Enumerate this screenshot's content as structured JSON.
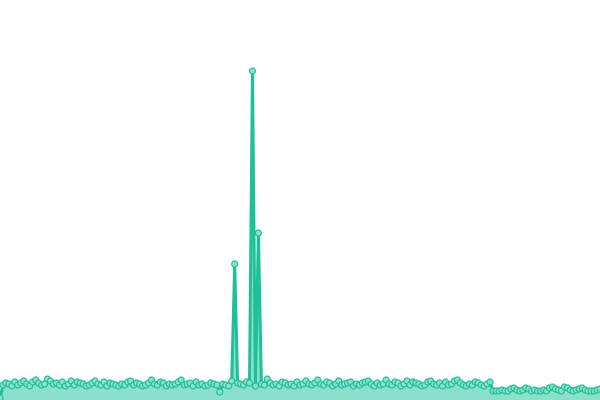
{
  "chart_data": {
    "type": "area",
    "title": "",
    "xlabel": "",
    "ylabel": "",
    "grid": false,
    "legend": "none",
    "ylim": [
      0,
      340
    ],
    "colors": {
      "line": "#1fbf98",
      "fill": "#8ae0cb",
      "marker_fill": "#8ae0cb",
      "marker_stroke": "#1fbf98"
    },
    "values": [
      2,
      15,
      17,
      16,
      14,
      18,
      15,
      17,
      19,
      16,
      14,
      18,
      20,
      17,
      15,
      16,
      21,
      19,
      16,
      17,
      15,
      18,
      14,
      16,
      19,
      15,
      18,
      17,
      16,
      14,
      15,
      17,
      19,
      16,
      15,
      18,
      14,
      17,
      16,
      15,
      14,
      16,
      15,
      18,
      19,
      15,
      17,
      16,
      14,
      15,
      17,
      20,
      16,
      15,
      18,
      17,
      14,
      16,
      15,
      16,
      18,
      20,
      15,
      16,
      17,
      14,
      18,
      15,
      16,
      14,
      15,
      17,
      16,
      15,
      8,
      16,
      15,
      14,
      19,
      136,
      17,
      16,
      15,
      18,
      17,
      329,
      14,
      167,
      16,
      15,
      21,
      17,
      15,
      16,
      14,
      18,
      17,
      15,
      16,
      14,
      18,
      15,
      16,
      19,
      16,
      15,
      17,
      20,
      16,
      15,
      18,
      17,
      14,
      16,
      19,
      15,
      16,
      17,
      18,
      14,
      16,
      15,
      17,
      18,
      19,
      16,
      14,
      17,
      15,
      16,
      20,
      16,
      15,
      18,
      17,
      14,
      16,
      19,
      15,
      18,
      17,
      16,
      14,
      15,
      18,
      19,
      16,
      15,
      17,
      14,
      18,
      15,
      16,
      19,
      20,
      17,
      15,
      14,
      16,
      15,
      18,
      17,
      15,
      14,
      16,
      18,
      9,
      9,
      9,
      10,
      9,
      9,
      11,
      12,
      10,
      9,
      10,
      12,
      11,
      9,
      10,
      9,
      9,
      10,
      9,
      12,
      13,
      11,
      10,
      9,
      13,
      12,
      10,
      9,
      10,
      11,
      12,
      10,
      9,
      9,
      9,
      10,
      11
    ]
  }
}
